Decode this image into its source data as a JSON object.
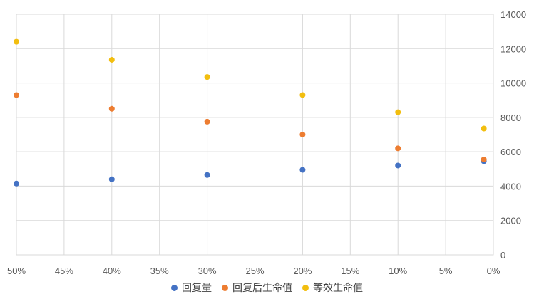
{
  "chart_data": {
    "type": "scatter",
    "title": "",
    "xlabel": "",
    "ylabel": "",
    "x_reversed": true,
    "xlim": [
      0.5,
      0
    ],
    "ylim": [
      0,
      14000
    ],
    "y_ticks": [
      0,
      2000,
      4000,
      6000,
      8000,
      10000,
      12000,
      14000
    ],
    "y_tick_labels": [
      "0",
      "2000",
      "4000",
      "6000",
      "8000",
      "10000",
      "12000",
      "14000"
    ],
    "x_ticks": [
      0.5,
      0.45,
      0.4,
      0.35,
      0.3,
      0.25,
      0.2,
      0.15,
      0.1,
      0.05,
      0
    ],
    "x_tick_labels": [
      "50%",
      "45%",
      "40%",
      "35%",
      "30%",
      "25%",
      "20%",
      "15%",
      "10%",
      "5%",
      "0%"
    ],
    "grid": true,
    "legend_position": "bottom",
    "x": [
      0.5,
      0.4,
      0.3,
      0.2,
      0.1,
      0.01
    ],
    "series": [
      {
        "name": "回复量",
        "color": "#4472C4",
        "values": [
          4150,
          4400,
          4650,
          4950,
          5200,
          5450
        ]
      },
      {
        "name": "回复后生命值",
        "color": "#ED7D31",
        "values": [
          9300,
          8500,
          7750,
          7000,
          6200,
          5550
        ]
      },
      {
        "name": "等效生命值",
        "color": "#F2BE0F",
        "values": [
          12400,
          11350,
          10350,
          9300,
          8300,
          7350
        ]
      }
    ]
  }
}
